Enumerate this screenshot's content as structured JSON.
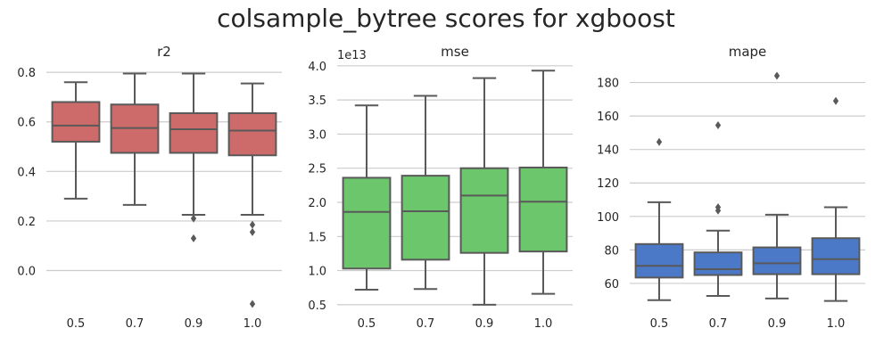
{
  "figure_title": "colsample_bytree scores for xgboost",
  "chart_data": [
    {
      "type": "box",
      "title": "r2",
      "color": "#CD6A6A",
      "categories": [
        "0.5",
        "0.7",
        "0.9",
        "1.0"
      ],
      "ylim": [
        -0.16,
        0.84
      ],
      "yticks": [
        0.0,
        0.2,
        0.4,
        0.6,
        0.8
      ],
      "ytick_labels": [
        "0.0",
        "0.2",
        "0.4",
        "0.6",
        "0.8"
      ],
      "grid": true,
      "boxes": [
        {
          "whislo": 0.29,
          "q1": 0.52,
          "med": 0.585,
          "q3": 0.68,
          "whishi": 0.76,
          "fliers": []
        },
        {
          "whislo": 0.265,
          "q1": 0.475,
          "med": 0.575,
          "q3": 0.67,
          "whishi": 0.795,
          "fliers": []
        },
        {
          "whislo": 0.225,
          "q1": 0.475,
          "med": 0.57,
          "q3": 0.635,
          "whishi": 0.795,
          "fliers": [
            0.21,
            0.13
          ]
        },
        {
          "whislo": 0.225,
          "q1": 0.465,
          "med": 0.565,
          "q3": 0.635,
          "whishi": 0.755,
          "fliers": [
            0.185,
            0.155,
            -0.135
          ]
        }
      ]
    },
    {
      "type": "box",
      "title": "mse",
      "offset_text": "1e13",
      "color": "#6CC66C",
      "categories": [
        "0.5",
        "0.7",
        "0.9",
        "1.0"
      ],
      "ylim": [
        0.42,
        4.05
      ],
      "yticks": [
        0.5,
        1.0,
        1.5,
        2.0,
        2.5,
        3.0,
        3.5,
        4.0
      ],
      "ytick_labels": [
        "0.5",
        "1.0",
        "1.5",
        "2.0",
        "2.5",
        "3.0",
        "3.5",
        "4.0"
      ],
      "grid": true,
      "boxes": [
        {
          "whislo": 0.72,
          "q1": 1.03,
          "med": 1.86,
          "q3": 2.36,
          "whishi": 3.42,
          "fliers": []
        },
        {
          "whislo": 0.73,
          "q1": 1.16,
          "med": 1.87,
          "q3": 2.39,
          "whishi": 3.56,
          "fliers": []
        },
        {
          "whislo": 0.5,
          "q1": 1.26,
          "med": 2.1,
          "q3": 2.5,
          "whishi": 3.82,
          "fliers": []
        },
        {
          "whislo": 0.66,
          "q1": 1.28,
          "med": 2.01,
          "q3": 2.51,
          "whishi": 3.93,
          "fliers": []
        }
      ]
    },
    {
      "type": "box",
      "title": "mape",
      "color": "#4C78C8",
      "categories": [
        "0.5",
        "0.7",
        "0.9",
        "1.0"
      ],
      "ylim": [
        44,
        192
      ],
      "yticks": [
        60,
        80,
        100,
        120,
        140,
        160,
        180
      ],
      "ytick_labels": [
        "60",
        "80",
        "100",
        "120",
        "140",
        "160",
        "180"
      ],
      "grid": true,
      "boxes": [
        {
          "whislo": 50,
          "q1": 63.5,
          "med": 70.5,
          "q3": 83.5,
          "whishi": 108.5,
          "fliers": [
            144.5
          ]
        },
        {
          "whislo": 52.5,
          "q1": 65,
          "med": 68.5,
          "q3": 78.5,
          "whishi": 91.5,
          "fliers": [
            103.5,
            105.5,
            154.5
          ]
        },
        {
          "whislo": 51,
          "q1": 65.5,
          "med": 72,
          "q3": 81.5,
          "whishi": 101,
          "fliers": [
            184
          ]
        },
        {
          "whislo": 49.5,
          "q1": 65.5,
          "med": 74.5,
          "q3": 87,
          "whishi": 105.5,
          "fliers": [
            169
          ]
        }
      ]
    }
  ]
}
